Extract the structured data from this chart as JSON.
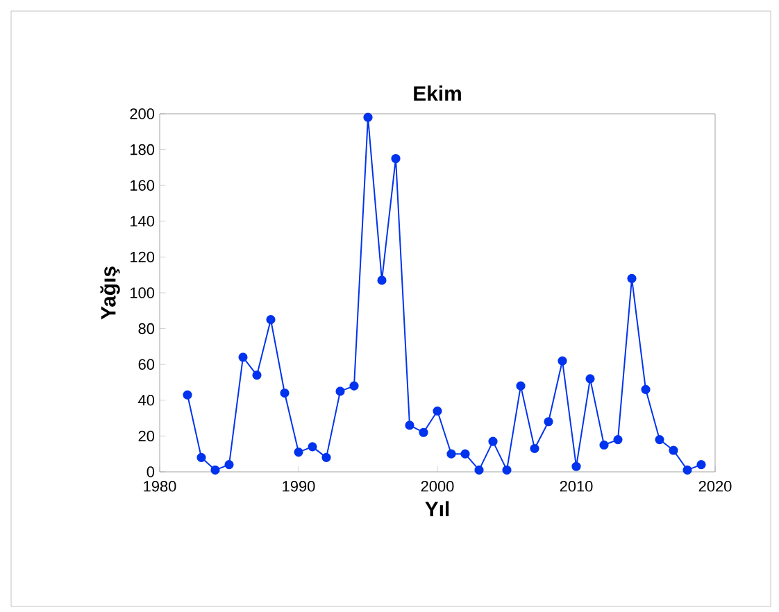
{
  "chart_data": {
    "type": "line",
    "title": "Ekim",
    "xlabel": "Yıl",
    "ylabel": "Yağış",
    "x": [
      1982,
      1983,
      1984,
      1985,
      1986,
      1987,
      1988,
      1989,
      1990,
      1991,
      1992,
      1993,
      1994,
      1995,
      1996,
      1997,
      1998,
      1999,
      2000,
      2001,
      2002,
      2003,
      2004,
      2005,
      2006,
      2007,
      2008,
      2009,
      2010,
      2011,
      2012,
      2013,
      2014,
      2015,
      2016,
      2017,
      2018,
      2019
    ],
    "values": [
      43,
      8,
      1,
      4,
      64,
      54,
      85,
      44,
      11,
      14,
      8,
      45,
      48,
      198,
      107,
      175,
      26,
      22,
      34,
      10,
      10,
      1,
      17,
      1,
      48,
      13,
      28,
      62,
      3,
      52,
      15,
      18,
      108,
      46,
      18,
      12,
      1,
      4
    ],
    "color": "#0033ee",
    "marker": "circle",
    "line_style": "solid",
    "grid": false,
    "xlim": [
      1980,
      2020
    ],
    "xticks": [
      1980,
      1990,
      2000,
      2010,
      2020
    ],
    "ylim": [
      0,
      200
    ],
    "yticks": [
      0,
      20,
      40,
      60,
      80,
      100,
      120,
      140,
      160,
      180,
      200
    ]
  }
}
